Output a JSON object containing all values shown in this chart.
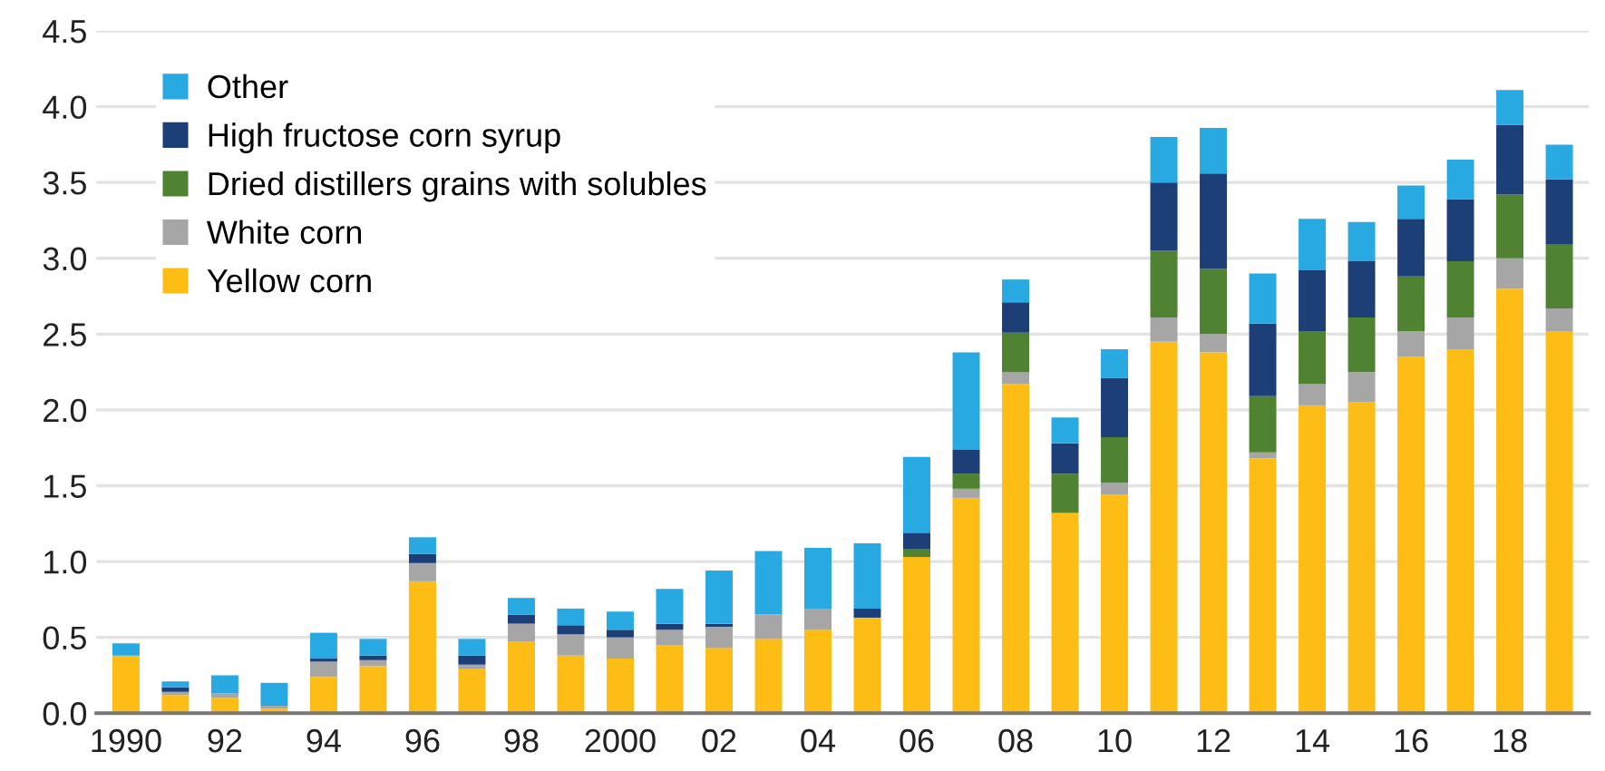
{
  "chart_data": {
    "type": "bar",
    "stacked": true,
    "categories": [
      "1990",
      null,
      "92",
      null,
      "94",
      null,
      "96",
      null,
      "98",
      null,
      "2000",
      null,
      "02",
      null,
      "04",
      null,
      "06",
      null,
      "08",
      null,
      "10",
      null,
      "12",
      null,
      "14",
      null,
      "16",
      null,
      "18",
      null
    ],
    "series": [
      {
        "name": "Yellow corn",
        "color": "#fdbd14",
        "values": [
          0.38,
          0.12,
          0.1,
          0.03,
          0.24,
          0.31,
          0.87,
          0.29,
          0.47,
          0.38,
          0.36,
          0.45,
          0.43,
          0.49,
          0.55,
          0.63,
          1.03,
          1.42,
          2.17,
          1.32,
          1.44,
          2.45,
          2.38,
          1.68,
          2.03,
          2.05,
          2.35,
          2.4,
          2.8,
          2.52
        ]
      },
      {
        "name": "White corn",
        "color": "#a6a6a6",
        "values": [
          0,
          0.02,
          0.03,
          0.02,
          0.1,
          0.04,
          0.12,
          0.03,
          0.12,
          0.14,
          0.14,
          0.1,
          0.14,
          0.16,
          0.14,
          0,
          0,
          0.06,
          0.08,
          0,
          0.08,
          0.16,
          0.12,
          0.04,
          0.14,
          0.2,
          0.17,
          0.21,
          0.2,
          0.15
        ]
      },
      {
        "name": "Dried distillers grains with solubles",
        "color": "#4f8332",
        "values": [
          0,
          0,
          0,
          0,
          0,
          0,
          0,
          0,
          0,
          0,
          0,
          0,
          0,
          0,
          0,
          0,
          0.05,
          0.1,
          0.26,
          0.26,
          0.3,
          0.44,
          0.43,
          0.37,
          0.35,
          0.36,
          0.36,
          0.37,
          0.42,
          0.42
        ]
      },
      {
        "name": "High fructose corn syrup",
        "color": "#1d3f78",
        "values": [
          0,
          0.03,
          0,
          0,
          0.02,
          0.03,
          0.06,
          0.06,
          0.06,
          0.06,
          0.05,
          0.04,
          0.02,
          0,
          0,
          0.06,
          0.11,
          0.16,
          0.2,
          0.2,
          0.39,
          0.45,
          0.63,
          0.48,
          0.4,
          0.37,
          0.38,
          0.41,
          0.46,
          0.43
        ]
      },
      {
        "name": "Other",
        "color": "#29a9e1",
        "values": [
          0.08,
          0.04,
          0.12,
          0.15,
          0.17,
          0.11,
          0.11,
          0.11,
          0.11,
          0.11,
          0.12,
          0.23,
          0.35,
          0.42,
          0.4,
          0.43,
          0.5,
          0.64,
          0.15,
          0.17,
          0.19,
          0.3,
          0.3,
          0.33,
          0.34,
          0.26,
          0.22,
          0.26,
          0.23,
          0.23
        ]
      }
    ],
    "ylim": [
      0,
      4.5
    ],
    "yticks": [
      {
        "value": 0,
        "label": "0.0"
      },
      {
        "value": 0.5,
        "label": "0.5"
      },
      {
        "value": 1,
        "label": "1.0"
      },
      {
        "value": 1.5,
        "label": "1.5"
      },
      {
        "value": 2,
        "label": "2.0"
      },
      {
        "value": 2.5,
        "label": "2.5"
      },
      {
        "value": 3,
        "label": "3.0"
      },
      {
        "value": 3.5,
        "label": "3.5"
      },
      {
        "value": 4,
        "label": "4.0"
      },
      {
        "value": 4.5,
        "label": "4.5"
      }
    ],
    "grid": "y",
    "legend": "top left"
  }
}
